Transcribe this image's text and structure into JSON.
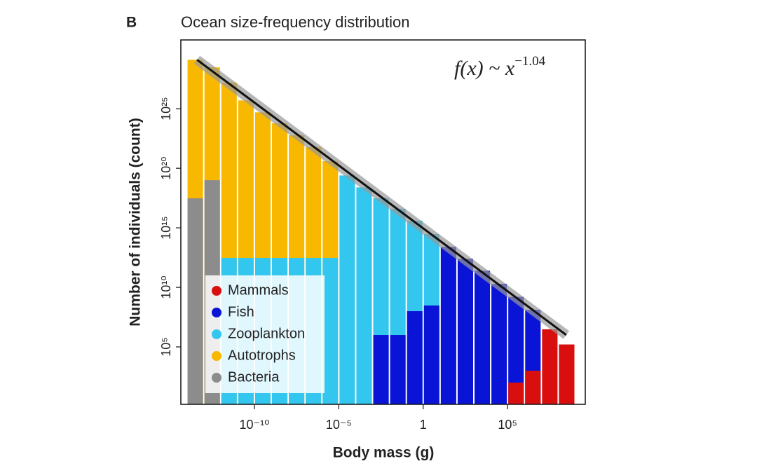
{
  "chart_data": {
    "type": "histogram",
    "panel_label": "B",
    "title": "Ocean size-frequency distribution",
    "x_label": "Body mass (g)",
    "y_label": "Number of individuals (count)",
    "annotation": "f(x) ~ x",
    "annotation_exponent": "−1.04",
    "log_x": true,
    "log_y": true,
    "bins": [
      1e-14,
      1e-13,
      1e-12,
      1e-11,
      1e-10,
      1e-09,
      1e-08,
      1e-07,
      1e-06,
      1e-05,
      0.0001,
      0.001,
      0.01,
      0.1,
      1,
      10,
      100,
      1000,
      10000,
      100000,
      1000000,
      10000000,
      100000000,
      1000000000
    ],
    "series": [
      {
        "name": "Mammals",
        "color": "#d90f0f",
        "values": [
          null,
          null,
          null,
          null,
          null,
          null,
          null,
          null,
          null,
          null,
          null,
          null,
          null,
          null,
          null,
          null,
          null,
          null,
          null,
          100,
          1000,
          3000000,
          160000
        ]
      },
      {
        "name": "Fish",
        "color": "#0a14d6",
        "values": [
          null,
          null,
          null,
          null,
          null,
          null,
          null,
          null,
          null,
          null,
          null,
          1000000,
          1000000,
          100000000,
          300000000,
          25000000000000.0,
          2500000000000.0,
          250000000000.0,
          20000000000.0,
          1600000000.0,
          130000000.0,
          null,
          null
        ]
      },
      {
        "name": "Zooplankton",
        "color": "#33c6ef",
        "values": [
          null,
          null,
          3000000000000.0,
          3000000000000.0,
          3000000000000.0,
          3000000000000.0,
          3000000000000.0,
          3000000000000.0,
          3000000000000.0,
          2.5e+19,
          2.5e+18,
          3e+17,
          4e+16,
          4000000000000000.0,
          300000000000000.0,
          null,
          null,
          null,
          null,
          null,
          null,
          null,
          null
        ]
      },
      {
        "name": "Autotrophs",
        "color": "#f9b800",
        "values": [
          1.3e+29,
          3e+28,
          1.6e+27,
          5e+25,
          5e+24,
          6e+23,
          6e+22,
          6e+21,
          4e+20,
          null,
          null,
          null,
          null,
          null,
          null,
          null,
          null,
          null,
          null,
          null,
          null,
          null,
          null
        ]
      },
      {
        "name": "Bacteria",
        "color": "#8c8c8c",
        "values": [
          3e+17,
          1e+19,
          null,
          null,
          null,
          null,
          null,
          null,
          null,
          null,
          null,
          null,
          null,
          null,
          null,
          null,
          null,
          null,
          null,
          null,
          null,
          null,
          null
        ]
      }
    ],
    "fit": {
      "x": [
        4e-14,
        300000000
      ],
      "values": [
        1.3e+29,
        1000000
      ],
      "color": "#111111"
    },
    "xlim": [
      4.4e-15,
      4000000000.0
    ],
    "ylim": [
      1.5,
      6e+30
    ],
    "xticks": [
      {
        "value": 1e-10,
        "label": "10⁻¹⁰"
      },
      {
        "value": 1e-05,
        "label": "10⁻⁵"
      },
      1,
      {
        "value": 100000,
        "label": "10⁵"
      }
    ],
    "yticks": [
      {
        "value": 100000,
        "label": "10⁵"
      },
      {
        "value": 10000000000.0,
        "label": "10¹⁰"
      },
      {
        "value": 1000000000000000.0,
        "label": "10¹⁵"
      },
      {
        "value": 1e+20,
        "label": "10²⁰"
      },
      {
        "value": 1e+25,
        "label": "10²⁵"
      }
    ],
    "legend_position": "lower left"
  }
}
